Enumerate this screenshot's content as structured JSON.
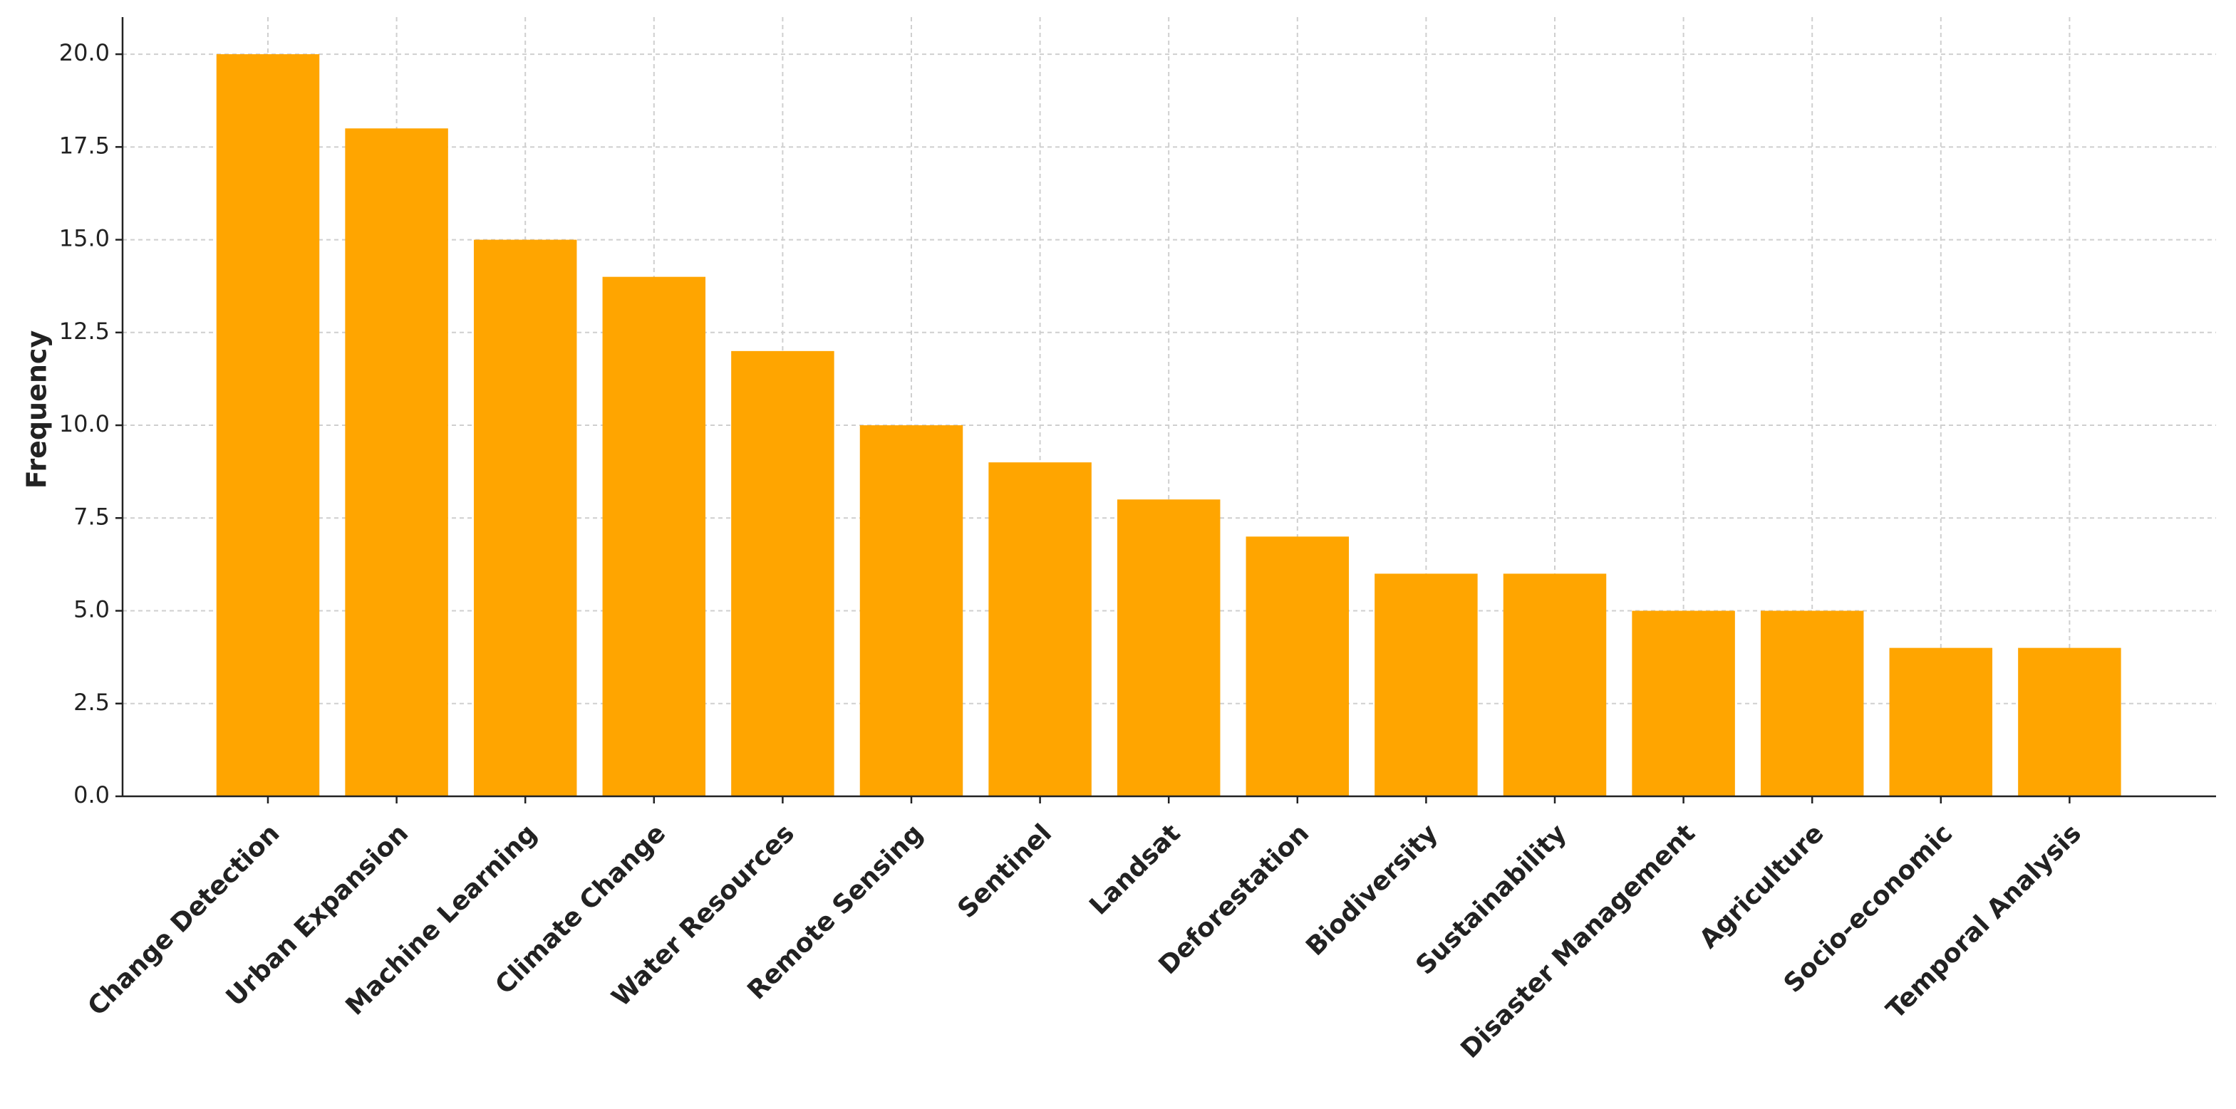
{
  "chart_data": {
    "type": "bar",
    "y_label": "Frequency",
    "categories": [
      "Change Detection",
      "Urban Expansion",
      "Machine Learning",
      "Climate Change",
      "Water Resources",
      "Remote Sensing",
      "Sentinel",
      "Landsat",
      "Deforestation",
      "Biodiversity",
      "Sustainability",
      "Disaster Management",
      "Agriculture",
      "Socio-economic",
      "Temporal Analysis"
    ],
    "values": [
      20,
      18,
      15,
      14,
      12,
      10,
      9,
      8,
      7,
      6,
      6,
      5,
      5,
      4,
      4
    ],
    "color": "#ffa500",
    "ylim": [
      0,
      21
    ],
    "yticks": [
      {
        "value": 0,
        "label": "0.0"
      },
      {
        "value": 2.5,
        "label": "2.5"
      },
      {
        "value": 5,
        "label": "5.0"
      },
      {
        "value": 7.5,
        "label": "7.5"
      },
      {
        "value": 10,
        "label": "10.0"
      },
      {
        "value": 12.5,
        "label": "12.5"
      },
      {
        "value": 15,
        "label": "15.0"
      },
      {
        "value": 17.5,
        "label": "17.5"
      },
      {
        "value": 20,
        "label": "20.0"
      }
    ],
    "grid": true
  }
}
